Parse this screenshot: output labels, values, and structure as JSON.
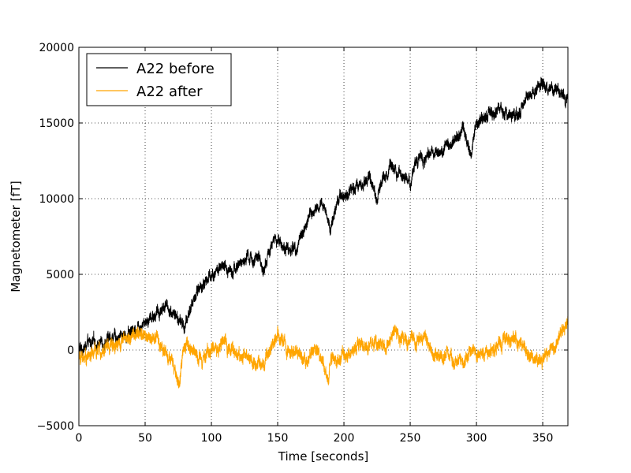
{
  "chart_data": {
    "type": "line",
    "title": "",
    "xlabel": "Time [seconds]",
    "ylabel": "Magnetometer [fT]",
    "xlim": [
      0,
      369
    ],
    "ylim": [
      -5000,
      20000
    ],
    "x_ticks": [
      0,
      50,
      100,
      150,
      200,
      250,
      300,
      350
    ],
    "y_ticks": [
      -5000,
      0,
      5000,
      10000,
      15000,
      20000
    ],
    "x_tick_labels": [
      "0",
      "50",
      "100",
      "150",
      "200",
      "250",
      "300",
      "350"
    ],
    "y_tick_labels": [
      "−5000",
      "0",
      "5000",
      "10000",
      "15000",
      "20000"
    ],
    "grid": true,
    "legend_position": "top-left",
    "series": [
      {
        "name": "A22 before",
        "color": "#000000",
        "noise_amplitude": 500,
        "x": [
          0,
          10,
          20,
          30,
          35,
          40,
          50,
          60,
          65,
          70,
          75,
          80,
          85,
          90,
          95,
          100,
          105,
          110,
          120,
          125,
          130,
          135,
          140,
          145,
          150,
          155,
          160,
          165,
          170,
          175,
          180,
          185,
          190,
          195,
          200,
          210,
          220,
          225,
          230,
          235,
          240,
          245,
          250,
          255,
          260,
          270,
          280,
          285,
          290,
          293,
          296,
          300,
          310,
          320,
          330,
          340,
          345,
          350,
          360,
          369
        ],
        "y": [
          0,
          400,
          600,
          900,
          1000,
          1300,
          2000,
          2500,
          3000,
          2600,
          2000,
          1500,
          3000,
          4000,
          4500,
          5000,
          5300,
          5300,
          5500,
          6000,
          6000,
          6000,
          5300,
          7000,
          7300,
          6800,
          6600,
          7000,
          8000,
          9000,
          9300,
          9500,
          8000,
          10000,
          10300,
          11000,
          11200,
          10000,
          11500,
          12300,
          12000,
          11700,
          11000,
          12800,
          12500,
          13000,
          13500,
          14000,
          15000,
          13800,
          12500,
          15000,
          15800,
          16000,
          15200,
          16800,
          17000,
          17500,
          17000,
          16500
        ]
      },
      {
        "name": "A22 after",
        "color": "#ffa500",
        "noise_amplitude": 550,
        "x": [
          0,
          10,
          20,
          30,
          40,
          50,
          60,
          65,
          70,
          74,
          76,
          78,
          82,
          90,
          100,
          110,
          120,
          130,
          140,
          145,
          150,
          155,
          160,
          170,
          180,
          188,
          190,
          200,
          210,
          220,
          230,
          240,
          250,
          260,
          270,
          280,
          290,
          300,
          310,
          320,
          330,
          340,
          345,
          350,
          355,
          360,
          365,
          369
        ],
        "y": [
          -500,
          -300,
          200,
          600,
          900,
          1000,
          600,
          0,
          -900,
          -1800,
          -2200,
          -500,
          400,
          -500,
          0,
          500,
          -300,
          -600,
          -1100,
          200,
          1000,
          500,
          -300,
          -500,
          -200,
          -1800,
          -700,
          -400,
          200,
          600,
          300,
          1200,
          400,
          800,
          -200,
          -500,
          -700,
          100,
          -300,
          300,
          600,
          -300,
          -700,
          -500,
          -300,
          0,
          1200,
          1500
        ]
      }
    ]
  }
}
